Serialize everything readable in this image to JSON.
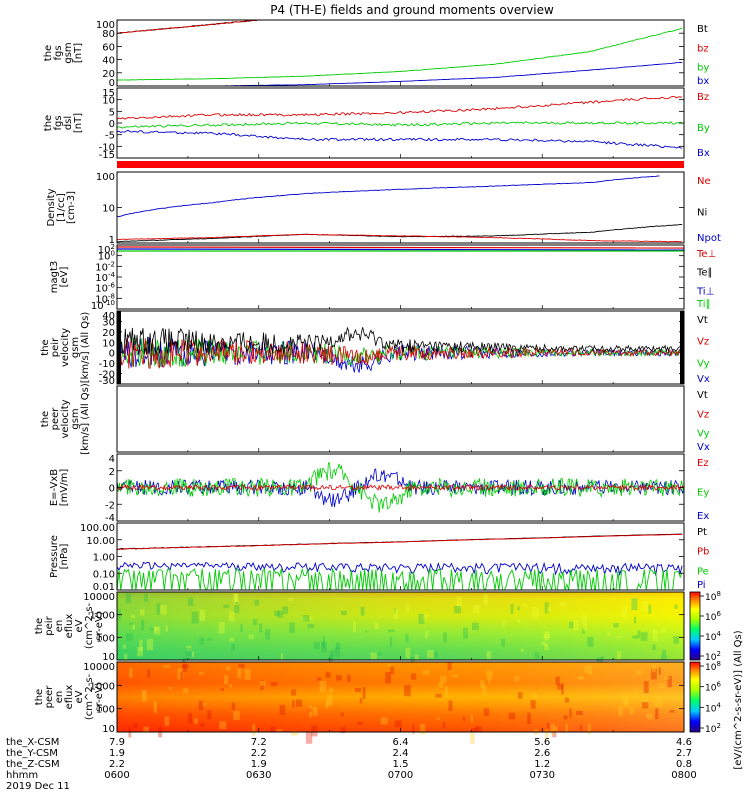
{
  "title": "P4 (TH-E) fields and ground moments overview",
  "footer": {
    "rows": [
      {
        "label": "the_X-CSM",
        "values": [
          "7.9",
          "7.2",
          "6.4",
          "5.6",
          "4.6"
        ]
      },
      {
        "label": "the_Y-CSM",
        "values": [
          "1.9",
          "2.2",
          "2.4",
          "2.6",
          "2.7"
        ]
      },
      {
        "label": "the_Z-CSM",
        "values": [
          "2.2",
          "1.9",
          "1.5",
          "1.2",
          "0.8"
        ]
      },
      {
        "label": "hhmm",
        "values": [
          "0600",
          "0630",
          "0700",
          "0730",
          "0800"
        ]
      }
    ],
    "date": "2019 Dec 11"
  },
  "colorbar_label": "[eV/(cm^2-s-sr-eV)] (All Qs)",
  "chart_data": [
    {
      "type": "line",
      "panel": "fgs_gsm",
      "ylabel": [
        "the",
        "fgs",
        "gsm",
        "[nT]"
      ],
      "ylim": [
        0,
        100
      ],
      "yticks": [
        "100",
        "80",
        "60",
        "40",
        "20",
        "0"
      ],
      "legend": [
        {
          "name": "Bt",
          "color": "#000000"
        },
        {
          "name": "bz",
          "color": "#dd0000"
        },
        {
          "name": "by",
          "color": "#00cc00"
        },
        {
          "name": "bx",
          "color": "#0000cc"
        }
      ],
      "series": [
        {
          "name": "Bt",
          "color": "#000000",
          "x": [
            0,
            15,
            30,
            40
          ],
          "y": [
            80,
            90,
            100,
            105
          ]
        },
        {
          "name": "bz",
          "color": "#dd0000",
          "x": [
            0,
            15,
            30,
            40
          ],
          "y": [
            80,
            90,
            100,
            105
          ]
        },
        {
          "name": "by",
          "color": "#00cc00",
          "x": [
            0,
            20,
            40,
            60,
            80,
            100,
            120
          ],
          "y": [
            9,
            11,
            15,
            22,
            33,
            52,
            88
          ]
        },
        {
          "name": "bx",
          "color": "#0000cc",
          "x": [
            0,
            20,
            40,
            60,
            80,
            100,
            120
          ],
          "y": [
            0,
            0,
            2,
            7,
            13,
            24,
            36
          ]
        }
      ]
    },
    {
      "type": "line",
      "panel": "fgs_dsl",
      "ylabel": [
        "the",
        "fgs",
        "dsl",
        "[nT]"
      ],
      "ylim": [
        -18,
        16
      ],
      "yticks": [
        "15",
        "10",
        "5",
        "0",
        "-5",
        "-10",
        "-15"
      ],
      "legend": [
        {
          "name": "Bz",
          "color": "#dd0000"
        },
        {
          "name": "By",
          "color": "#00cc00"
        },
        {
          "name": "Bx",
          "color": "#0000cc"
        }
      ],
      "series": [
        {
          "name": "Bz",
          "color": "#dd0000",
          "x": [
            0,
            20,
            40,
            60,
            80,
            100,
            120
          ],
          "y": [
            1,
            3,
            3,
            4,
            6,
            9,
            12
          ]
        },
        {
          "name": "By",
          "color": "#00cc00",
          "x": [
            0,
            20,
            40,
            60,
            80,
            100,
            120
          ],
          "y": [
            -3,
            -2,
            -1,
            -2,
            -1,
            -1,
            -1
          ]
        },
        {
          "name": "Bx",
          "color": "#0000cc",
          "x": [
            0,
            20,
            40,
            60,
            80,
            100,
            120
          ],
          "y": [
            -5,
            -6,
            -9,
            -9,
            -9,
            -10,
            -13
          ]
        }
      ]
    },
    {
      "type": "line",
      "panel": "density",
      "ylabel": [
        "Density",
        "[1/cc]",
        "[cm-3]"
      ],
      "ylim": [
        1,
        200
      ],
      "scale": "log",
      "yticks": [
        "100",
        "10",
        "1"
      ],
      "legend": [
        {
          "name": "Ne",
          "color": "#dd0000"
        },
        {
          "name": "Ni",
          "color": "#000000"
        },
        {
          "name": "Npot",
          "color": "#0000cc"
        }
      ],
      "series": [
        {
          "name": "Npot",
          "color": "#0000cc",
          "x": [
            0,
            20,
            40,
            60,
            80,
            100,
            115
          ],
          "y": [
            7,
            20,
            40,
            55,
            70,
            90,
            150
          ]
        },
        {
          "name": "Ni",
          "color": "#000000",
          "x": [
            0,
            20,
            40,
            60,
            80,
            100,
            120
          ],
          "y": [
            1.1,
            1.4,
            1.9,
            1.6,
            1.7,
            2.2,
            4
          ]
        },
        {
          "name": "Ne",
          "color": "#dd0000",
          "x": [
            0,
            20,
            40,
            60,
            80,
            100,
            120
          ],
          "y": [
            1.3,
            1.5,
            1.9,
            1.7,
            1.5,
            1.2,
            1.1
          ]
        }
      ]
    },
    {
      "type": "line",
      "panel": "temperature",
      "ylabel": [
        "magt3",
        "[eV]"
      ],
      "yticks": [
        "10^2",
        "10^0",
        "10^-2",
        "10^-4",
        "10^-6",
        "10^-8",
        "10^-10"
      ],
      "legend": [
        {
          "name": "Te⊥",
          "color": "#dd0000"
        },
        {
          "name": "Te∥",
          "color": "#000000"
        },
        {
          "name": "Ti⊥",
          "color": "#0000cc"
        },
        {
          "name": "Ti∥",
          "color": "#00cc00"
        }
      ]
    },
    {
      "type": "line",
      "panel": "peir_velocity",
      "ylabel": [
        "the",
        "peir",
        "velocity",
        "gsm",
        "[km/s] (All Qs)"
      ],
      "ylim": [
        -30,
        40
      ],
      "yticks": [
        "40",
        "30",
        "20",
        "10",
        "0",
        "-10",
        "-20",
        "-30"
      ],
      "legend": [
        {
          "name": "Vt",
          "color": "#000000"
        },
        {
          "name": "Vz",
          "color": "#dd0000"
        },
        {
          "name": "Vy",
          "color": "#00cc00"
        },
        {
          "name": "Vx",
          "color": "#0000cc"
        }
      ]
    },
    {
      "type": "line",
      "panel": "peer_velocity",
      "ylabel": [
        "the",
        "peer",
        "velocity",
        "gsm",
        "[km/s] (All Qs)"
      ],
      "legend": [
        {
          "name": "Vt",
          "color": "#000000"
        },
        {
          "name": "Vz",
          "color": "#dd0000"
        },
        {
          "name": "Vy",
          "color": "#00cc00"
        },
        {
          "name": "Vx",
          "color": "#0000cc"
        }
      ]
    },
    {
      "type": "line",
      "panel": "efield",
      "ylabel": [
        "E=-VxB",
        "[mV/m]"
      ],
      "ylim": [
        -4,
        4
      ],
      "yticks": [
        "4",
        "2",
        "0",
        "-2",
        "-4"
      ],
      "legend": [
        {
          "name": "Ez",
          "color": "#dd0000"
        },
        {
          "name": "Ey",
          "color": "#00cc00"
        },
        {
          "name": "Ex",
          "color": "#0000cc"
        }
      ]
    },
    {
      "type": "line",
      "panel": "pressure",
      "ylabel": [
        "Pressure",
        "[nPa]"
      ],
      "ylim": [
        0.01,
        100
      ],
      "scale": "log",
      "yticks": [
        "100.00",
        "10.00",
        "1.00",
        "0.10",
        "0.01"
      ],
      "legend": [
        {
          "name": "Pt",
          "color": "#000000"
        },
        {
          "name": "Pb",
          "color": "#dd0000"
        },
        {
          "name": "Pe",
          "color": "#00cc00"
        },
        {
          "name": "Pi",
          "color": "#0000cc"
        }
      ],
      "series": [
        {
          "name": "Pt",
          "color": "#000000",
          "x": [
            0,
            30,
            60,
            90,
            120
          ],
          "y": [
            2.8,
            4.5,
            7.5,
            13,
            22
          ]
        },
        {
          "name": "Pb",
          "color": "#dd0000",
          "x": [
            0,
            30,
            60,
            90,
            120
          ],
          "y": [
            2.7,
            4.4,
            7.3,
            12.5,
            21
          ]
        },
        {
          "name": "Pi",
          "color": "#0000cc",
          "x": [
            0,
            30,
            60,
            90,
            120
          ],
          "y": [
            0.3,
            0.27,
            0.25,
            0.24,
            0.22
          ]
        },
        {
          "name": "Pe",
          "color": "#00cc00",
          "x": [
            0,
            30,
            60,
            90,
            120
          ],
          "y": [
            0.05,
            0.04,
            0.025,
            0.02,
            0.03
          ]
        }
      ]
    },
    {
      "type": "heatmap",
      "panel": "peir_en_eflux",
      "ylabel": [
        "the",
        "peir",
        "en",
        "eflux",
        "eV",
        "(cm^2-s-",
        "sr-eV)"
      ],
      "yticks": [
        "10000",
        "1000",
        "100",
        "10"
      ],
      "colorbar_ticks": [
        "10^8",
        "10^6",
        "10^4",
        "10^2"
      ]
    },
    {
      "type": "heatmap",
      "panel": "peer_en_eflux",
      "ylabel": [
        "the",
        "peer",
        "en",
        "eflux",
        "eV",
        "(cm^2-s-",
        "sr-eV)"
      ],
      "yticks": [
        "10000",
        "1000",
        "100",
        "10"
      ],
      "colorbar_ticks": [
        "10^8",
        "10^6",
        "10^4",
        "10^2"
      ]
    }
  ]
}
